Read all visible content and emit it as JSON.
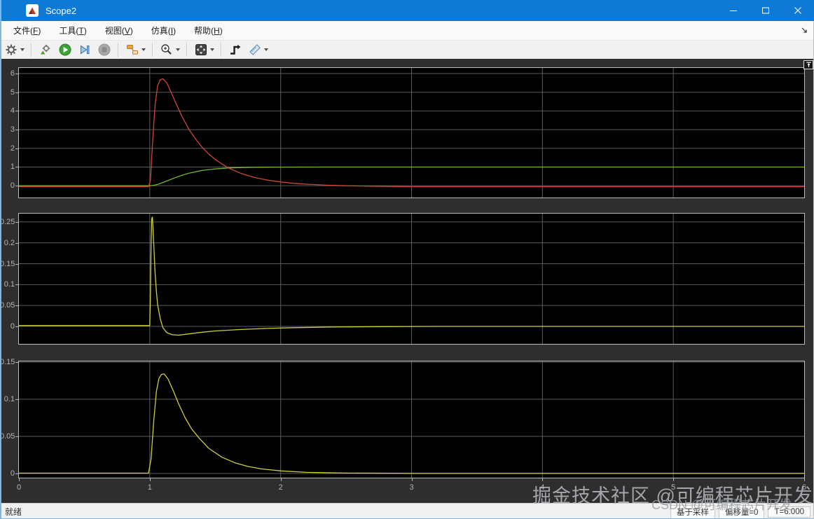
{
  "window": {
    "title": "Scope2",
    "controls": {
      "minimize": "minimize",
      "maximize": "maximize",
      "close": "close"
    }
  },
  "menubar": {
    "items": [
      {
        "pre": "文件(",
        "key": "F",
        "post": ")"
      },
      {
        "pre": "工具(",
        "key": "T",
        "post": ")"
      },
      {
        "pre": "视图(",
        "key": "V",
        "post": ")"
      },
      {
        "pre": "仿真(",
        "key": "I",
        "post": ")"
      },
      {
        "pre": "帮助(",
        "key": "H",
        "post": ")"
      }
    ]
  },
  "toolbar": {
    "icons": [
      "settings-gear",
      "stepping-options",
      "run",
      "step-forward",
      "stop",
      "signal-selector",
      "zoom",
      "scale-to-fit",
      "trigger",
      "measurements"
    ]
  },
  "statusbar": {
    "left": "就绪",
    "right": [
      "基于采样",
      "偏移量=0",
      "T=6.000"
    ]
  },
  "watermarks": {
    "inner": "掘金技术社区 @可编程芯片开发",
    "outer": "CSDN @可编程芯片开发"
  },
  "chart_data": [
    {
      "type": "line",
      "title": "",
      "xlim": [
        0,
        6
      ],
      "ylim": [
        -0.63,
        6.3
      ],
      "xticks": [
        0,
        1,
        2,
        3,
        4,
        5,
        6
      ],
      "xtick_labels": [
        "0",
        "1",
        "2",
        "3",
        "4",
        "5",
        "6"
      ],
      "show_x_labels": false,
      "yticks": [
        0,
        1,
        2,
        3,
        4,
        5,
        6
      ],
      "ytick_labels": [
        "0",
        "1",
        "2",
        "3",
        "4",
        "5",
        "6"
      ],
      "grid": true,
      "background": "#000000",
      "grid_color": "#5c5c5c",
      "series": [
        {
          "name": "step-response-green",
          "color": "#77b62c",
          "points": [
            [
              0,
              0
            ],
            [
              0.95,
              0
            ],
            [
              1,
              0
            ],
            [
              1.03,
              0.02
            ],
            [
              1.06,
              0.07
            ],
            [
              1.1,
              0.17
            ],
            [
              1.15,
              0.31
            ],
            [
              1.2,
              0.45
            ],
            [
              1.25,
              0.57
            ],
            [
              1.3,
              0.67
            ],
            [
              1.35,
              0.75
            ],
            [
              1.4,
              0.815
            ],
            [
              1.45,
              0.865
            ],
            [
              1.5,
              0.9
            ],
            [
              1.6,
              0.95
            ],
            [
              1.7,
              0.975
            ],
            [
              1.8,
              0.988
            ],
            [
              2,
              0.997
            ],
            [
              2.3,
              1
            ],
            [
              6,
              1
            ]
          ]
        },
        {
          "name": "impulse-response-red",
          "color": "#cf4637",
          "points": [
            [
              0,
              -0.05
            ],
            [
              0.99,
              -0.05
            ],
            [
              1.005,
              0.3
            ],
            [
              1.02,
              2.2
            ],
            [
              1.04,
              4.3
            ],
            [
              1.06,
              5.35
            ],
            [
              1.08,
              5.68
            ],
            [
              1.1,
              5.72
            ],
            [
              1.13,
              5.5
            ],
            [
              1.16,
              5.05
            ],
            [
              1.2,
              4.4
            ],
            [
              1.25,
              3.65
            ],
            [
              1.3,
              3.0
            ],
            [
              1.35,
              2.5
            ],
            [
              1.4,
              2.05
            ],
            [
              1.45,
              1.7
            ],
            [
              1.5,
              1.4
            ],
            [
              1.6,
              0.95
            ],
            [
              1.7,
              0.65
            ],
            [
              1.8,
              0.44
            ],
            [
              1.9,
              0.3
            ],
            [
              2,
              0.2
            ],
            [
              2.1,
              0.13
            ],
            [
              2.2,
              0.08
            ],
            [
              2.35,
              0.03
            ],
            [
              2.5,
              0
            ],
            [
              2.7,
              -0.03
            ],
            [
              3,
              -0.05
            ],
            [
              6,
              -0.05
            ]
          ]
        }
      ]
    },
    {
      "type": "line",
      "title": "",
      "xlim": [
        0,
        6
      ],
      "ylim": [
        -0.042,
        0.27
      ],
      "xticks": [
        0,
        1,
        2,
        3,
        4,
        5,
        6
      ],
      "xtick_labels": [
        "0",
        "1",
        "2",
        "3",
        "4",
        "5",
        "6"
      ],
      "show_x_labels": false,
      "yticks": [
        0,
        0.05,
        0.1,
        0.15,
        0.2,
        0.25
      ],
      "ytick_labels": [
        "0",
        "0.05",
        "0.1",
        "0.15",
        "0.2",
        "0.25"
      ],
      "grid": true,
      "background": "#000000",
      "grid_color": "#5c5c5c",
      "series": [
        {
          "name": "signal-yellow",
          "color": "#d0ce3c",
          "points": [
            [
              0,
              0.002
            ],
            [
              0.99,
              0.002
            ],
            [
              1,
              0.002
            ],
            [
              1.005,
              0.08
            ],
            [
              1.01,
              0.2
            ],
            [
              1.015,
              0.258
            ],
            [
              1.02,
              0.262
            ],
            [
              1.03,
              0.2
            ],
            [
              1.04,
              0.13
            ],
            [
              1.05,
              0.085
            ],
            [
              1.06,
              0.052
            ],
            [
              1.08,
              0.018
            ],
            [
              1.1,
              -0.003
            ],
            [
              1.13,
              -0.015
            ],
            [
              1.17,
              -0.02
            ],
            [
              1.22,
              -0.021
            ],
            [
              1.3,
              -0.018
            ],
            [
              1.4,
              -0.014
            ],
            [
              1.5,
              -0.011
            ],
            [
              1.7,
              -0.0075
            ],
            [
              1.9,
              -0.005
            ],
            [
              2.1,
              -0.003
            ],
            [
              2.4,
              -0.0015
            ],
            [
              2.8,
              -0.0005
            ],
            [
              3.2,
              0
            ],
            [
              6,
              0
            ]
          ]
        }
      ]
    },
    {
      "type": "line",
      "title": "",
      "xlim": [
        0,
        6
      ],
      "ylim": [
        -0.0056,
        0.1509
      ],
      "xticks": [
        0,
        1,
        2,
        3,
        4,
        5,
        6
      ],
      "xtick_labels": [
        "0",
        "1",
        "2",
        "3",
        "4",
        "5",
        "6"
      ],
      "show_x_labels": true,
      "yticks": [
        0,
        0.05,
        0.1,
        0.15
      ],
      "ytick_labels": [
        "0",
        "0.05",
        "0.1",
        "0.15"
      ],
      "grid": true,
      "background": "#000000",
      "grid_color": "#5c5c5c",
      "series": [
        {
          "name": "signal-yellow",
          "color": "#d0ce3c",
          "points": [
            [
              0,
              0.0005
            ],
            [
              0.99,
              0.0005
            ],
            [
              1.01,
              0.02
            ],
            [
              1.03,
              0.07
            ],
            [
              1.05,
              0.11
            ],
            [
              1.07,
              0.128
            ],
            [
              1.09,
              0.1335
            ],
            [
              1.11,
              0.134
            ],
            [
              1.14,
              0.127
            ],
            [
              1.18,
              0.111
            ],
            [
              1.22,
              0.094
            ],
            [
              1.27,
              0.075
            ],
            [
              1.32,
              0.06
            ],
            [
              1.38,
              0.047
            ],
            [
              1.45,
              0.034
            ],
            [
              1.55,
              0.022
            ],
            [
              1.65,
              0.0145
            ],
            [
              1.75,
              0.0095
            ],
            [
              1.85,
              0.0063
            ],
            [
              2,
              0.0035
            ],
            [
              2.2,
              0.0016
            ],
            [
              2.5,
              0.0006
            ],
            [
              3,
              0.0002
            ],
            [
              6,
              0.0002
            ]
          ]
        }
      ]
    }
  ]
}
